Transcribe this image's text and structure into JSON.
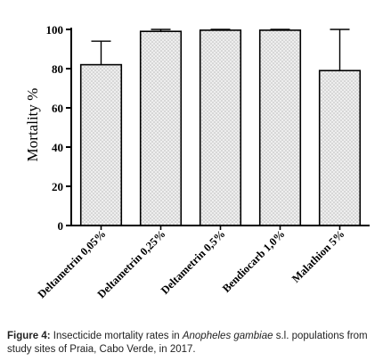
{
  "chart_data": {
    "type": "bar",
    "ylabel": "Mortality %",
    "ylim": [
      0,
      100
    ],
    "yticks": [
      0,
      20,
      40,
      60,
      80,
      100
    ],
    "categories": [
      "Deltametrin 0,05%",
      "Deltametrin 0,25%",
      "Deltametrin 0,5%",
      "Bendiocarb 1,0%",
      "Malathion 5%"
    ],
    "values": [
      82,
      99,
      99.6,
      99.6,
      79
    ],
    "error_upper": [
      94,
      100,
      100,
      100,
      100
    ],
    "bar_fill": "#e4e4e4",
    "bar_pattern": "dotted",
    "grid": false,
    "legend": "none"
  },
  "caption": {
    "label": "Figure 4:",
    "text_before": " Insecticide mortality rates in ",
    "species": "Anopheles gambiae",
    "text_after": " s.l. populations from study sites of Praia, Cabo Verde, in 2017."
  }
}
